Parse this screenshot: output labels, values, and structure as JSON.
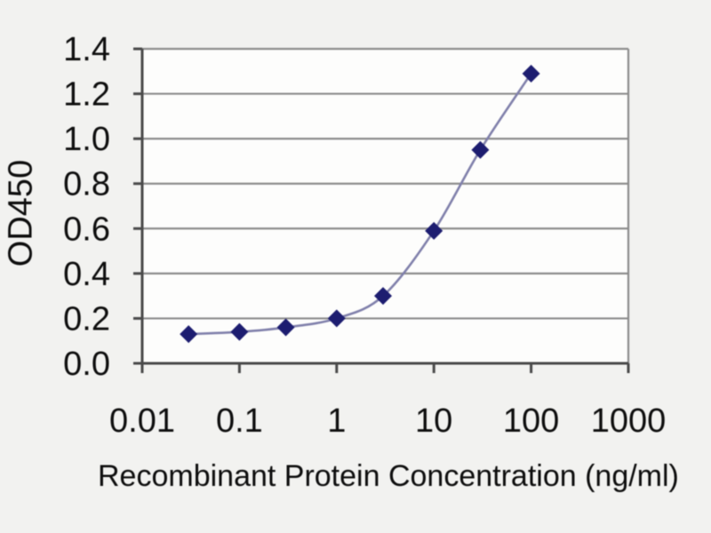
{
  "page": {
    "background": "#f2f2f0"
  },
  "chart_data": {
    "type": "line",
    "x_scale": "log",
    "x": [
      0.03,
      0.1,
      0.3,
      1,
      3,
      10,
      30,
      100
    ],
    "series": [
      {
        "name": "OD450",
        "values": [
          0.13,
          0.14,
          0.16,
          0.2,
          0.3,
          0.59,
          0.95,
          1.29
        ]
      }
    ],
    "title": "",
    "xlabel": "Recombinant Protein Concentration (ng/ml)",
    "ylabel": "OD450",
    "xlim": [
      0.01,
      1000
    ],
    "ylim": [
      0.0,
      1.4
    ],
    "x_ticks": [
      0.01,
      0.1,
      1,
      10,
      100,
      1000
    ],
    "x_tick_labels": [
      "0.01",
      "0.1",
      "1",
      "10",
      "100",
      "1000"
    ],
    "y_ticks": [
      0.0,
      0.2,
      0.4,
      0.6,
      0.8,
      1.0,
      1.2,
      1.4
    ],
    "grid": "horizontal",
    "legend": "none",
    "marker": "diamond",
    "line_style": "smooth",
    "colors": {
      "plot_bg": "#fdfdfc",
      "grid": "#8c8c8c",
      "axis": "#4a4a4a",
      "line": "#8080ab",
      "marker": "#1d1d70",
      "text": "#0d0d0d"
    }
  }
}
